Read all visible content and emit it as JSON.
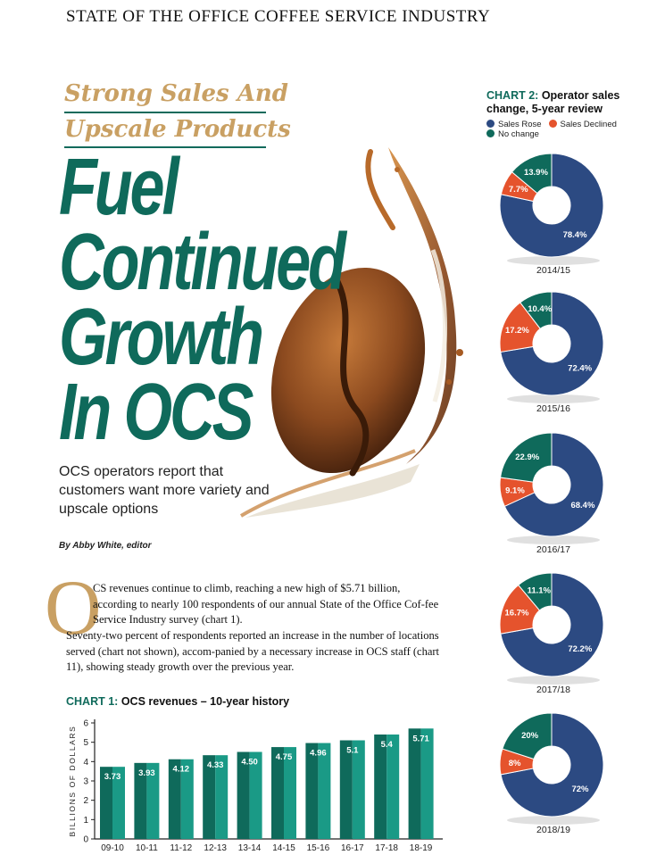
{
  "running_head": "STATE OF THE OFFICE COFFEE SERVICE INDUSTRY",
  "kicker_line1": "Strong Sales And",
  "kicker_line2": "Upscale Products",
  "headline_lines": [
    "Fuel",
    "Continued",
    "Growth",
    "In OCS"
  ],
  "dek": "OCS operators report that customers want more variety and upscale options",
  "byline": "By Abby White, editor",
  "dropcap": "O",
  "body_line1": "CS revenues continue to climb, reaching a new high of $5.71 billion, according to nearly 100 respondents of our annual State of the Office Cof-fee Service Industry survey (chart 1).",
  "body_line2": "Seventy-two percent of respondents reported an increase in the number of locations served (chart not shown), accom-panied by a necessary increase in OCS staff (chart 11), showing steady growth over the previous year.",
  "colors": {
    "green": "#0f6a5b",
    "teal": "#1a9a86",
    "navy": "#2c4a82",
    "orange": "#e5532d",
    "gold": "#c9a063"
  },
  "chart1": {
    "tag": "CHART 1:",
    "title": "OCS revenues – 10-year history",
    "ylabel": "BILLIONS OF DOLLARS"
  },
  "chart2": {
    "tag": "CHART 2:",
    "title_line1": "Operator sales",
    "title_line2": "change, 5-year review",
    "legend": [
      "Sales Rose",
      "Sales Declined",
      "No change"
    ]
  },
  "chart_data": [
    {
      "type": "bar",
      "title": "OCS revenues – 10-year history",
      "xlabel": "",
      "ylabel": "BILLIONS OF DOLLARS",
      "ylim": [
        0,
        6
      ],
      "yticks": [
        0,
        1,
        2,
        3,
        4,
        5,
        6
      ],
      "categories": [
        "09-10",
        "10-11",
        "11-12",
        "12-13",
        "13-14",
        "14-15",
        "15-16",
        "16-17",
        "17-18",
        "18-19"
      ],
      "values": [
        3.73,
        3.93,
        4.12,
        4.33,
        4.5,
        4.75,
        4.96,
        5.1,
        5.4,
        5.71
      ],
      "value_labels": [
        "3.73",
        "3.93",
        "4.12",
        "4.33",
        "4.50",
        "4.75",
        "4.96",
        "5.1",
        "5.4",
        "5.71"
      ]
    },
    {
      "type": "pie",
      "title": "Operator sales change, 5-year review",
      "series_names": [
        "Sales Rose",
        "Sales Declined",
        "No change"
      ],
      "charts": [
        {
          "year": "2014/15",
          "values": [
            78.4,
            7.7,
            13.9
          ],
          "labels": [
            "78.4%",
            "7.7%",
            "13.9%"
          ]
        },
        {
          "year": "2015/16",
          "values": [
            72.4,
            17.2,
            10.4
          ],
          "labels": [
            "72.4%",
            "17.2%",
            "10.4%"
          ]
        },
        {
          "year": "2016/17",
          "values": [
            68.4,
            9.1,
            22.9
          ],
          "labels": [
            "68.4%",
            "9.1%",
            "22.9%"
          ]
        },
        {
          "year": "2017/18",
          "values": [
            72.2,
            16.7,
            11.1
          ],
          "labels": [
            "72.2%",
            "16.7%",
            "11.1%"
          ]
        },
        {
          "year": "2018/19",
          "values": [
            72,
            8,
            20
          ],
          "labels": [
            "72%",
            "8%",
            "20%"
          ]
        }
      ]
    }
  ]
}
